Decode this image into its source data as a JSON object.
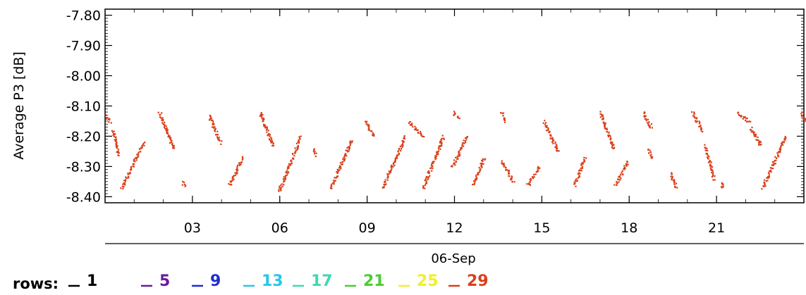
{
  "chart_data": {
    "type": "scatter",
    "title": "",
    "ylabel": "Average P3 [dB]",
    "xlabel": "06-Sep",
    "ylim": [
      -8.4,
      -7.8
    ],
    "xlim": [
      0,
      24
    ],
    "y_ticks": [
      "-7.80",
      "-7.90",
      "-8.00",
      "-8.10",
      "-8.20",
      "-8.30",
      "-8.40"
    ],
    "x_ticks": [
      "03",
      "06",
      "09",
      "12",
      "15",
      "18",
      "21"
    ],
    "x_tick_values": [
      3,
      6,
      9,
      12,
      15,
      18,
      21
    ],
    "y_tick_values": [
      -7.8,
      -7.9,
      -8.0,
      -8.1,
      -8.2,
      -8.3,
      -8.4
    ],
    "grid": false,
    "legend": {
      "title": "rows:",
      "entries": [
        {
          "label": "1",
          "color": "#000000"
        },
        {
          "label": "5",
          "color": "#6a1b9a"
        },
        {
          "label": "9",
          "color": "#1e2bd6"
        },
        {
          "label": "13",
          "color": "#29c7e6"
        },
        {
          "label": "17",
          "color": "#3fd9b0"
        },
        {
          "label": "21",
          "color": "#4ccc33"
        },
        {
          "label": "25",
          "color": "#f2ef2a"
        },
        {
          "label": "29",
          "color": "#d9401a"
        }
      ]
    },
    "series": [
      {
        "name": "29",
        "color": "#d9401a",
        "segments": [
          {
            "x0": 0.0,
            "y0": -8.13,
            "x1": 0.15,
            "y1": -8.15
          },
          {
            "x0": 0.25,
            "y0": -8.18,
            "x1": 0.45,
            "y1": -8.26
          },
          {
            "x0": 0.55,
            "y0": -8.37,
            "x1": 1.3,
            "y1": -8.22
          },
          {
            "x0": 1.85,
            "y0": -8.12,
            "x1": 2.35,
            "y1": -8.24
          },
          {
            "x0": 2.65,
            "y0": -8.35,
            "x1": 2.7,
            "y1": -8.36
          },
          {
            "x0": 3.55,
            "y0": -8.13,
            "x1": 3.95,
            "y1": -8.22
          },
          {
            "x0": 4.25,
            "y0": -8.36,
            "x1": 4.7,
            "y1": -8.27
          },
          {
            "x0": 5.3,
            "y0": -8.12,
            "x1": 5.75,
            "y1": -8.23
          },
          {
            "x0": 5.95,
            "y0": -8.38,
            "x1": 6.7,
            "y1": -8.2
          },
          {
            "x0": 7.15,
            "y0": -8.24,
            "x1": 7.2,
            "y1": -8.26
          },
          {
            "x0": 7.75,
            "y0": -8.37,
            "x1": 8.45,
            "y1": -8.21
          },
          {
            "x0": 8.95,
            "y0": -8.15,
            "x1": 9.2,
            "y1": -8.2
          },
          {
            "x0": 9.5,
            "y0": -8.37,
            "x1": 10.3,
            "y1": -8.2
          },
          {
            "x0": 10.4,
            "y0": -8.15,
            "x1": 10.9,
            "y1": -8.2
          },
          {
            "x0": 10.9,
            "y0": -8.37,
            "x1": 11.6,
            "y1": -8.2
          },
          {
            "x0": 11.95,
            "y0": -8.12,
            "x1": 12.15,
            "y1": -8.14
          },
          {
            "x0": 11.9,
            "y0": -8.3,
            "x1": 12.4,
            "y1": -8.2
          },
          {
            "x0": 12.6,
            "y0": -8.36,
            "x1": 13.0,
            "y1": -8.27
          },
          {
            "x0": 13.6,
            "y0": -8.12,
            "x1": 13.7,
            "y1": -8.15
          },
          {
            "x0": 13.6,
            "y0": -8.28,
            "x1": 14.0,
            "y1": -8.35
          },
          {
            "x0": 14.5,
            "y0": -8.36,
            "x1": 14.9,
            "y1": -8.3
          },
          {
            "x0": 15.05,
            "y0": -8.15,
            "x1": 15.55,
            "y1": -8.25
          },
          {
            "x0": 16.1,
            "y0": -8.36,
            "x1": 16.45,
            "y1": -8.27
          },
          {
            "x0": 17.0,
            "y0": -8.12,
            "x1": 17.45,
            "y1": -8.24
          },
          {
            "x0": 17.5,
            "y0": -8.36,
            "x1": 17.95,
            "y1": -8.28
          },
          {
            "x0": 18.45,
            "y0": -8.12,
            "x1": 18.75,
            "y1": -8.17
          },
          {
            "x0": 18.65,
            "y0": -8.24,
            "x1": 18.75,
            "y1": -8.27
          },
          {
            "x0": 19.4,
            "y0": -8.32,
            "x1": 19.6,
            "y1": -8.37
          },
          {
            "x0": 20.15,
            "y0": -8.12,
            "x1": 20.5,
            "y1": -8.18
          },
          {
            "x0": 20.6,
            "y0": -8.23,
            "x1": 20.9,
            "y1": -8.34
          },
          {
            "x0": 21.15,
            "y0": -8.37,
            "x1": 21.2,
            "y1": -8.35
          },
          {
            "x0": 21.7,
            "y0": -8.12,
            "x1": 22.1,
            "y1": -8.15
          },
          {
            "x0": 22.15,
            "y0": -8.17,
            "x1": 22.5,
            "y1": -8.23
          },
          {
            "x0": 22.55,
            "y0": -8.37,
            "x1": 23.35,
            "y1": -8.2
          },
          {
            "x0": 23.9,
            "y0": -8.12,
            "x1": 24.0,
            "y1": -8.15
          }
        ]
      }
    ]
  }
}
